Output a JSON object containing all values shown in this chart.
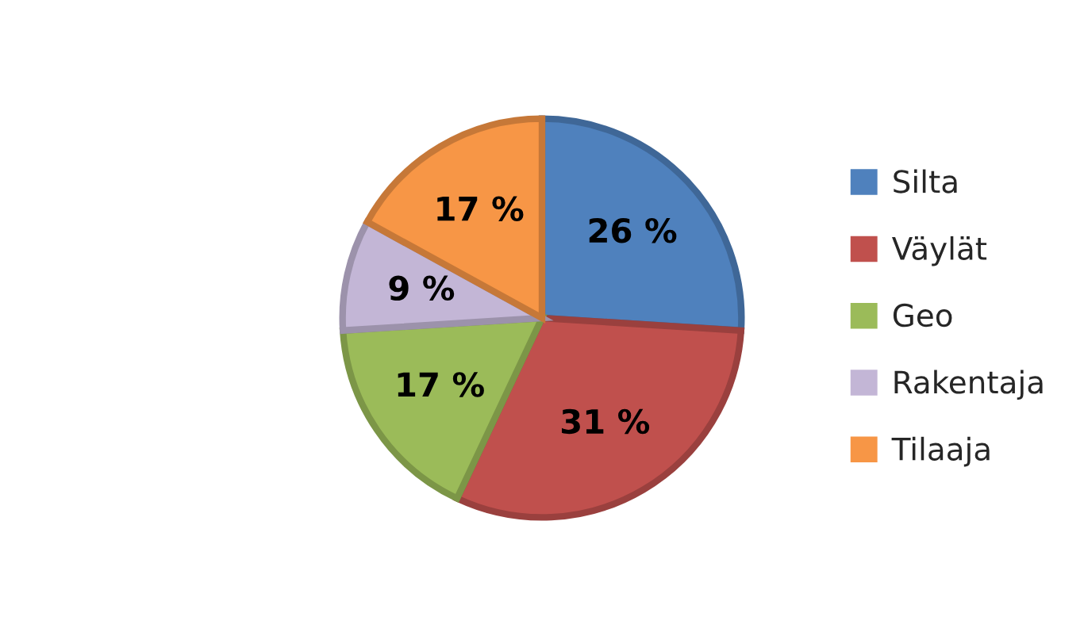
{
  "chart_data": {
    "type": "pie",
    "categories": [
      "Silta",
      "Väylät",
      "Geo",
      "Rakentaja",
      "Tilaaja"
    ],
    "values": [
      26,
      31,
      17,
      9,
      17
    ],
    "colors": [
      "#4f81bd",
      "#c0504d",
      "#9bbb59",
      "#c3b6d6",
      "#f79646"
    ],
    "value_labels": [
      "26 %",
      "31 %",
      "17 %",
      "9 %",
      "17 %"
    ],
    "legend": "right"
  }
}
